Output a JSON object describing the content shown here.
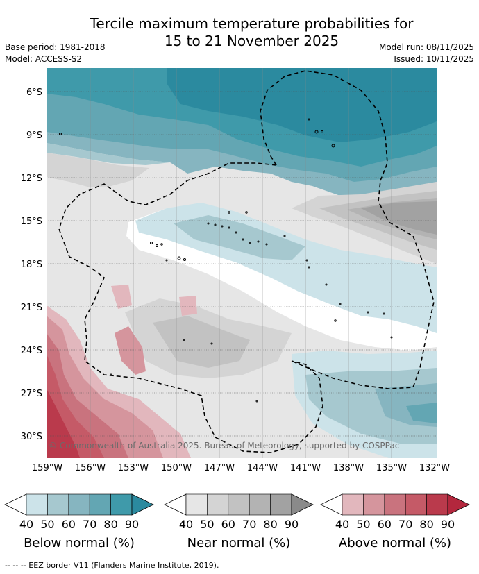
{
  "title_line1": "Tercile maximum temperature probabilities for",
  "title_line2": "15 to 21 November 2025",
  "base_period": "Base period: 1981-2018",
  "model": "Model: ACCESS-S2",
  "model_run": "Model run: 08/11/2025",
  "issued": "Issued: 10/11/2025",
  "copyright": "© Commonwealth of Australia 2025. Bureau of Meteorology, supported by COSPPac",
  "footnote": "-- -- -- EEZ border V11 (Flanders Marine Institute, 2019).",
  "lat_labels": [
    "6°S",
    "9°S",
    "12°S",
    "15°S",
    "18°S",
    "21°S",
    "24°S",
    "27°S",
    "30°S"
  ],
  "lon_labels": [
    "159°W",
    "156°W",
    "153°W",
    "150°W",
    "147°W",
    "144°W",
    "141°W",
    "138°W",
    "135°W",
    "132°W"
  ],
  "legends": [
    {
      "title": "Below normal (%)",
      "ticks": [
        "40",
        "50",
        "60",
        "70",
        "80",
        "90"
      ],
      "colors": [
        "#cce3e9",
        "#a6c8cf",
        "#86b5c0",
        "#63a6b3",
        "#3f9aaa",
        "#2b8a9f"
      ]
    },
    {
      "title": "Near normal (%)",
      "ticks": [
        "40",
        "50",
        "60",
        "70",
        "80",
        "90"
      ],
      "colors": [
        "#e6e6e6",
        "#d4d4d4",
        "#c2c2c2",
        "#b3b3b3",
        "#a2a2a2",
        "#8a8a8a"
      ]
    },
    {
      "title": "Above normal (%)",
      "ticks": [
        "40",
        "50",
        "60",
        "70",
        "80",
        "90"
      ],
      "colors": [
        "#e2b7bd",
        "#d5959d",
        "#c9737e",
        "#c55a67",
        "#ba3a4c",
        "#b3273d"
      ]
    }
  ]
}
